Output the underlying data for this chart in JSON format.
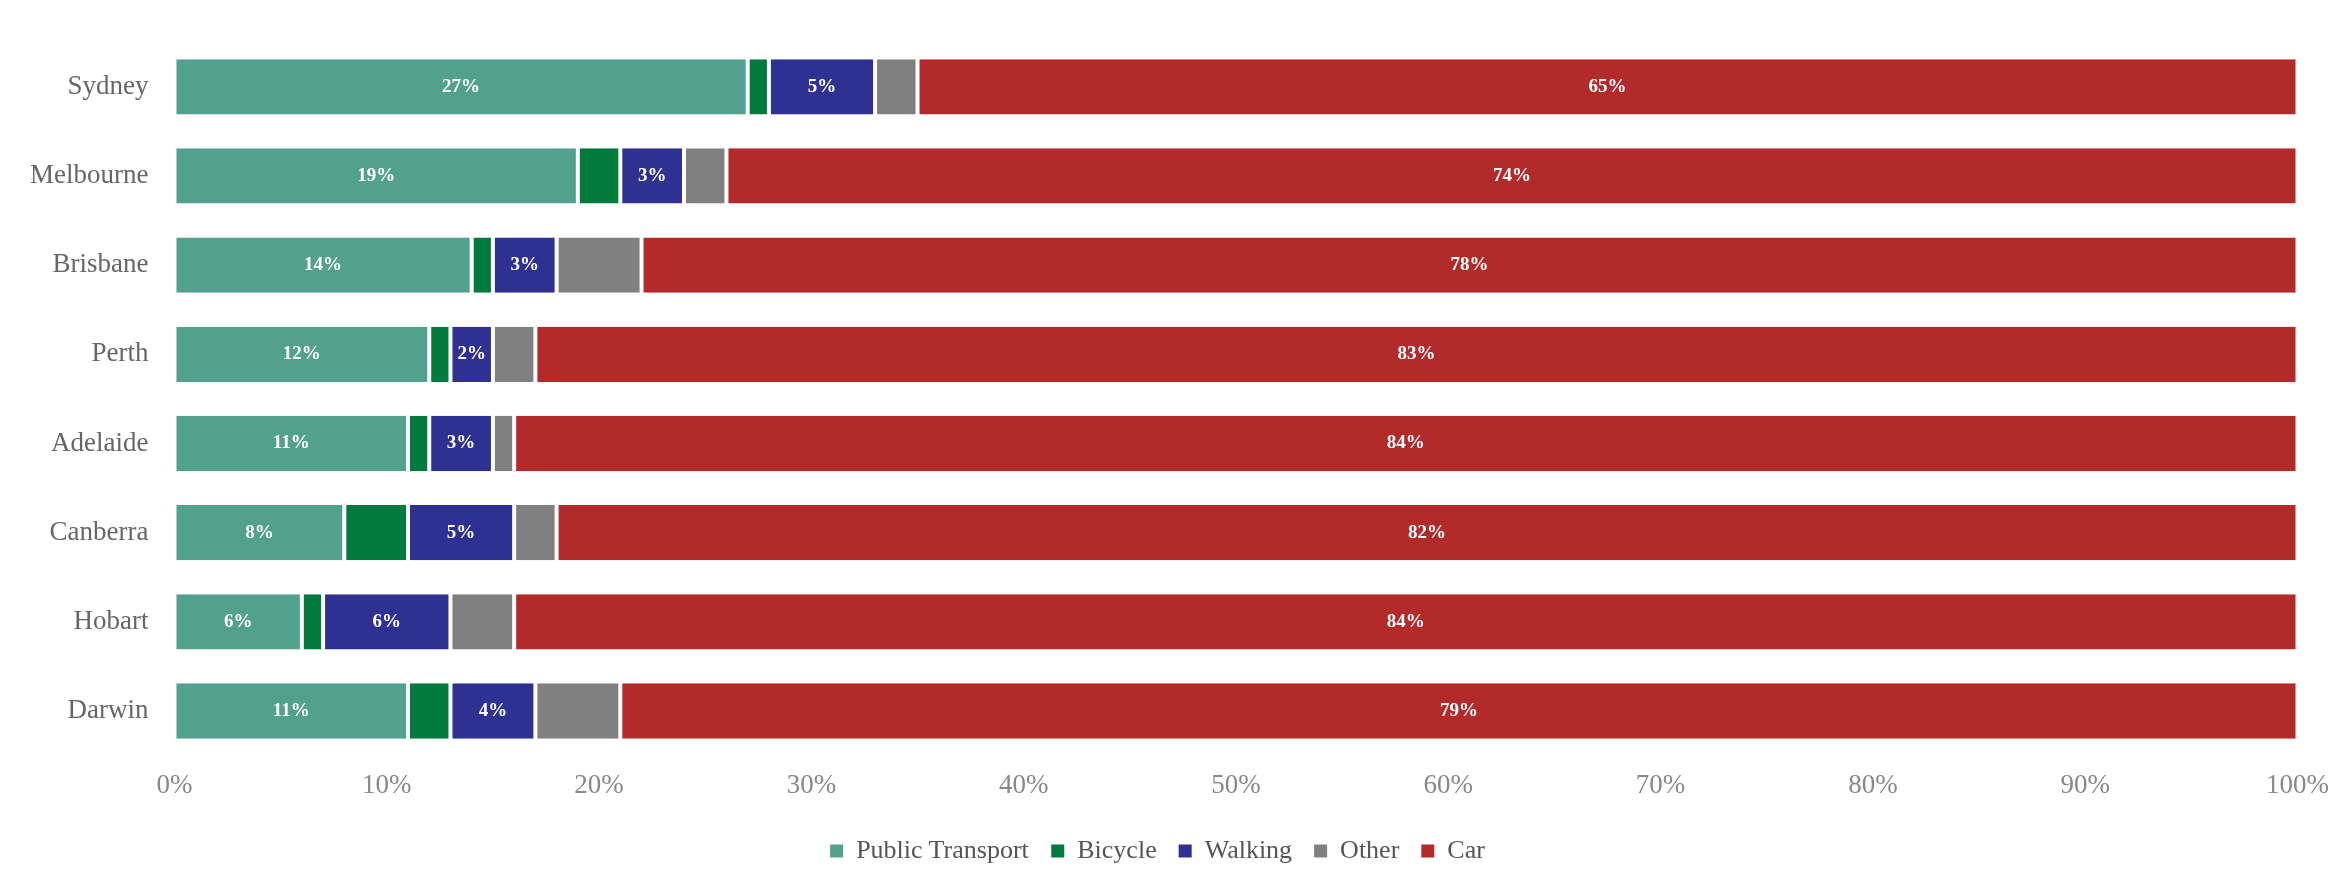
{
  "chart_data": {
    "type": "bar",
    "orientation": "horizontal",
    "stacked": true,
    "categories": [
      "Sydney",
      "Melbourne",
      "Brisbane",
      "Perth",
      "Adelaide",
      "Canberra",
      "Hobart",
      "Darwin"
    ],
    "series": [
      {
        "name": "Public Transport",
        "color": "#52a18f",
        "values": [
          27,
          19,
          14,
          12,
          11,
          8,
          6,
          11
        ],
        "value_labels": [
          "27%",
          "19%",
          "14%",
          "12%",
          "11%",
          "8%",
          "6%",
          "11%"
        ]
      },
      {
        "name": "Bicycle",
        "color": "#007a3d",
        "values": [
          1,
          2,
          1,
          1,
          1,
          3,
          1,
          2
        ]
      },
      {
        "name": "Walking",
        "color": "#2e3192",
        "values": [
          5,
          3,
          3,
          2,
          3,
          5,
          6,
          4
        ],
        "value_labels": [
          "5%",
          "3%",
          "3%",
          "2%",
          "3%",
          "5%",
          "6%",
          "4%"
        ]
      },
      {
        "name": "Other",
        "color": "#808080",
        "values": [
          2,
          2,
          4,
          2,
          1,
          2,
          3,
          4
        ]
      },
      {
        "name": "Car",
        "color": "#b22a2a",
        "values": [
          65,
          74,
          78,
          83,
          84,
          82,
          84,
          79
        ],
        "value_labels": [
          "65%",
          "74%",
          "78%",
          "83%",
          "84%",
          "82%",
          "84%",
          "79%"
        ]
      }
    ],
    "xlim": [
      0,
      100
    ],
    "xticks": [
      {
        "value": 0,
        "label": "0%"
      },
      {
        "value": 10,
        "label": "10%"
      },
      {
        "value": 20,
        "label": "20%"
      },
      {
        "value": 30,
        "label": "30%"
      },
      {
        "value": 40,
        "label": "40%"
      },
      {
        "value": 50,
        "label": "50%"
      },
      {
        "value": 60,
        "label": "60%"
      },
      {
        "value": 70,
        "label": "70%"
      },
      {
        "value": 80,
        "label": "80%"
      },
      {
        "value": 90,
        "label": "90%"
      },
      {
        "value": 100,
        "label": "100%"
      }
    ],
    "grid": false,
    "legend": "bottom"
  }
}
